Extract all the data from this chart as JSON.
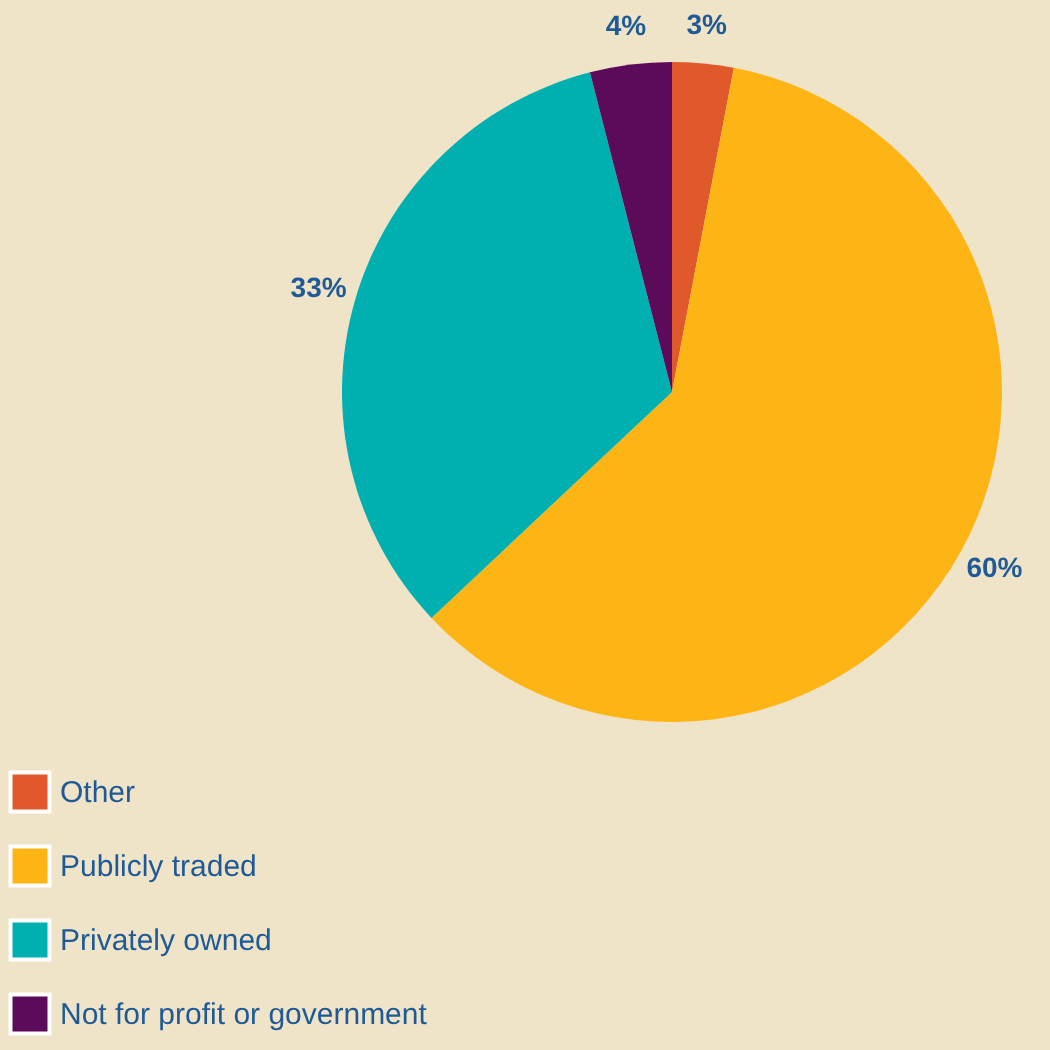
{
  "chart_data": {
    "type": "pie",
    "categories": [
      "Other",
      "Publicly traded",
      "Privately owned",
      "Not for profit or government"
    ],
    "values": [
      3,
      60,
      33,
      4
    ],
    "colors": [
      "#e0592a",
      "#fdb515",
      "#00b0b0",
      "#5c0a5a"
    ],
    "value_labels": [
      "3%",
      "60%",
      "33%",
      "4%"
    ],
    "legend": "bottom left"
  }
}
